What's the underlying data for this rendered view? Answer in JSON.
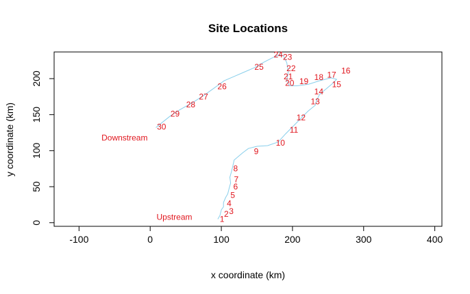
{
  "chart_data": {
    "type": "line",
    "title": "Site Locations",
    "xlabel": "x coordinate (km)",
    "ylabel": "y coordinate (km)",
    "xlim": [
      -135,
      410
    ],
    "ylim": [
      -5,
      237
    ],
    "xticks": [
      -100,
      0,
      100,
      200,
      300,
      400
    ],
    "yticks": [
      0,
      50,
      100,
      150,
      200
    ],
    "grid": false,
    "legend": "none",
    "colors": {
      "line": "#87ceeb",
      "labels": "#e0151d",
      "axes": "#000000"
    },
    "river_path": [
      [
        95,
        5
      ],
      [
        98,
        10
      ],
      [
        100,
        18
      ],
      [
        103,
        22
      ],
      [
        103,
        28
      ],
      [
        106,
        35
      ],
      [
        109,
        40
      ],
      [
        111,
        48
      ],
      [
        113,
        55
      ],
      [
        112,
        63
      ],
      [
        114,
        70
      ],
      [
        116,
        78
      ],
      [
        118,
        87
      ],
      [
        124,
        92
      ],
      [
        130,
        97
      ],
      [
        138,
        103
      ],
      [
        150,
        106
      ],
      [
        165,
        107
      ],
      [
        180,
        112
      ],
      [
        190,
        123
      ],
      [
        200,
        133
      ],
      [
        210,
        143
      ],
      [
        222,
        155
      ],
      [
        232,
        163
      ],
      [
        234,
        170
      ],
      [
        238,
        178
      ],
      [
        244,
        183
      ],
      [
        256,
        193
      ],
      [
        262,
        199
      ],
      [
        254,
        201
      ],
      [
        238,
        197
      ],
      [
        222,
        192
      ],
      [
        206,
        190
      ],
      [
        196,
        190
      ],
      [
        192,
        197
      ],
      [
        194,
        210
      ],
      [
        192,
        222
      ],
      [
        187,
        232
      ],
      [
        181,
        233
      ],
      [
        172,
        229
      ],
      [
        160,
        223
      ],
      [
        146,
        215
      ],
      [
        132,
        209
      ],
      [
        118,
        203
      ],
      [
        104,
        197
      ],
      [
        90,
        187
      ],
      [
        76,
        177
      ],
      [
        60,
        167
      ],
      [
        42,
        157
      ],
      [
        28,
        148
      ],
      [
        18,
        140
      ],
      [
        8,
        132
      ]
    ],
    "sites": [
      {
        "label": "1",
        "x": 101,
        "y": 5
      },
      {
        "label": "2",
        "x": 107,
        "y": 12
      },
      {
        "label": "3",
        "x": 114,
        "y": 16
      },
      {
        "label": "4",
        "x": 111,
        "y": 27
      },
      {
        "label": "5",
        "x": 116,
        "y": 38
      },
      {
        "label": "6",
        "x": 120,
        "y": 50
      },
      {
        "label": "7",
        "x": 121,
        "y": 60
      },
      {
        "label": "8",
        "x": 120,
        "y": 75
      },
      {
        "label": "9",
        "x": 149,
        "y": 99
      },
      {
        "label": "10",
        "x": 183,
        "y": 111
      },
      {
        "label": "11",
        "x": 202,
        "y": 129
      },
      {
        "label": "12",
        "x": 212,
        "y": 146
      },
      {
        "label": "13",
        "x": 232,
        "y": 168
      },
      {
        "label": "14",
        "x": 237,
        "y": 182
      },
      {
        "label": "15",
        "x": 262,
        "y": 192
      },
      {
        "label": "16",
        "x": 275,
        "y": 211
      },
      {
        "label": "17",
        "x": 255,
        "y": 205
      },
      {
        "label": "18",
        "x": 237,
        "y": 202
      },
      {
        "label": "19",
        "x": 216,
        "y": 196
      },
      {
        "label": "20",
        "x": 196,
        "y": 194
      },
      {
        "label": "21",
        "x": 194,
        "y": 203
      },
      {
        "label": "22",
        "x": 198,
        "y": 214
      },
      {
        "label": "23",
        "x": 193,
        "y": 230
      },
      {
        "label": "24",
        "x": 180,
        "y": 233
      },
      {
        "label": "25",
        "x": 153,
        "y": 216
      },
      {
        "label": "26",
        "x": 101,
        "y": 189
      },
      {
        "label": "27",
        "x": 75,
        "y": 175
      },
      {
        "label": "28",
        "x": 57,
        "y": 164
      },
      {
        "label": "29",
        "x": 35,
        "y": 151
      },
      {
        "label": "30",
        "x": 16,
        "y": 133
      }
    ],
    "annotations": [
      {
        "text": "Downstream",
        "x": -36,
        "y": 118
      },
      {
        "text": "Upstream",
        "x": 34,
        "y": 8
      }
    ]
  }
}
